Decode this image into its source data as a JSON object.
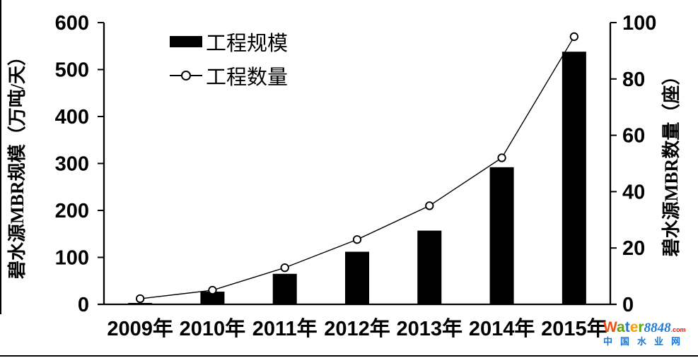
{
  "chart_data": {
    "type": "bar+line",
    "categories": [
      "2009年",
      "2010年",
      "2011年",
      "2012年",
      "2013年",
      "2014年",
      "2015年"
    ],
    "series": [
      {
        "name": "工程规模",
        "type": "bar",
        "axis": "left",
        "color": "#000000",
        "values": [
          3,
          27,
          65,
          112,
          157,
          292,
          538
        ]
      },
      {
        "name": "工程数量",
        "type": "line",
        "axis": "right",
        "color": "#000000",
        "marker": "open-circle",
        "values": [
          2,
          5,
          13,
          23,
          35,
          52,
          95
        ]
      }
    ],
    "left_axis": {
      "label": "碧水源MBR规模（万吨/天）",
      "min": 0,
      "max": 600,
      "tick_step": 100,
      "ticks": [
        0,
        100,
        200,
        300,
        400,
        500,
        600
      ]
    },
    "right_axis": {
      "label": "碧水源MBR数量（座）",
      "min": 0,
      "max": 100,
      "tick_step": 20,
      "ticks": [
        0,
        20,
        40,
        60,
        80,
        100
      ]
    },
    "grid": "off",
    "legend_position": "inside-top-left",
    "background": "#ffffff",
    "axis_color": "#000000"
  },
  "watermark": {
    "brand_letters": [
      {
        "t": "W",
        "c": "#f05014"
      },
      {
        "t": "a",
        "c": "#61a60e"
      },
      {
        "t": "t",
        "c": "#1f7ad2"
      },
      {
        "t": "e",
        "c": "#ffa000"
      },
      {
        "t": "r",
        "c": "#61a60e"
      }
    ],
    "brand_number": "8848",
    "brand_number_color": "#1f7ad2",
    "brand_tld": ".com",
    "brand_tld_color": "#f01414",
    "tagline": "中国水业网",
    "tagline_color": "#1a74d4"
  }
}
